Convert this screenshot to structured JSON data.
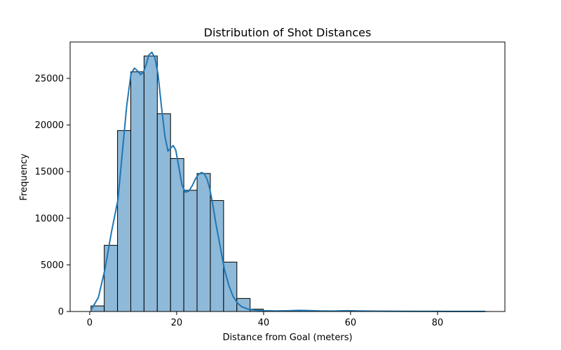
{
  "chart_data": {
    "type": "bar",
    "title": "Distribution of Shot Distances",
    "xlabel": "Distance from Goal (meters)",
    "ylabel": "Frequency",
    "xlim": [
      -4.5,
      95.5
    ],
    "ylim": [
      0,
      28900
    ],
    "xticks": [
      0,
      20,
      40,
      60,
      80
    ],
    "yticks": [
      0,
      5000,
      10000,
      15000,
      20000,
      25000
    ],
    "grid": false,
    "bin_width": 3.05,
    "bins": [
      {
        "x0": 0.3,
        "x1": 3.35,
        "value": 600
      },
      {
        "x0": 3.35,
        "x1": 6.4,
        "value": 7100
      },
      {
        "x0": 6.4,
        "x1": 9.45,
        "value": 19400
      },
      {
        "x0": 9.45,
        "x1": 12.5,
        "value": 25700
      },
      {
        "x0": 12.5,
        "x1": 15.55,
        "value": 27400
      },
      {
        "x0": 15.55,
        "x1": 18.6,
        "value": 21200
      },
      {
        "x0": 18.6,
        "x1": 21.65,
        "value": 16400
      },
      {
        "x0": 21.65,
        "x1": 24.7,
        "value": 13000
      },
      {
        "x0": 24.7,
        "x1": 27.75,
        "value": 14800
      },
      {
        "x0": 27.75,
        "x1": 30.8,
        "value": 11900
      },
      {
        "x0": 30.8,
        "x1": 33.85,
        "value": 5300
      },
      {
        "x0": 33.85,
        "x1": 36.9,
        "value": 1400
      },
      {
        "x0": 36.9,
        "x1": 39.95,
        "value": 250
      },
      {
        "x0": 39.95,
        "x1": 43.0,
        "value": 60
      },
      {
        "x0": 43.0,
        "x1": 46.05,
        "value": 30
      },
      {
        "x0": 46.05,
        "x1": 49.1,
        "value": 60
      },
      {
        "x0": 49.1,
        "x1": 52.15,
        "value": 30
      },
      {
        "x0": 52.15,
        "x1": 55.2,
        "value": 15
      },
      {
        "x0": 55.2,
        "x1": 58.25,
        "value": 20
      },
      {
        "x0": 58.25,
        "x1": 61.3,
        "value": 40
      },
      {
        "x0": 61.3,
        "x1": 64.35,
        "value": 15
      },
      {
        "x0": 64.35,
        "x1": 67.4,
        "value": 10
      },
      {
        "x0": 67.4,
        "x1": 70.45,
        "value": 10
      },
      {
        "x0": 70.45,
        "x1": 73.5,
        "value": 5
      },
      {
        "x0": 73.5,
        "x1": 76.55,
        "value": 5
      },
      {
        "x0": 76.55,
        "x1": 79.6,
        "value": 5
      },
      {
        "x0": 79.6,
        "x1": 82.65,
        "value": 5
      },
      {
        "x0": 82.65,
        "x1": 85.7,
        "value": 5
      },
      {
        "x0": 85.7,
        "x1": 88.75,
        "value": 5
      },
      {
        "x0": 88.75,
        "x1": 91.8,
        "value": 5
      }
    ],
    "kde": {
      "x": [
        0.3,
        2,
        3.5,
        5,
        6.5,
        7.5,
        8.5,
        9.5,
        10.3,
        11,
        11.7,
        12.3,
        13,
        13.6,
        14.3,
        15,
        15.7,
        16.5,
        17.3,
        18,
        18.6,
        19.2,
        19.8,
        20.5,
        21.2,
        22,
        22.8,
        23.6,
        24.3,
        25,
        25.7,
        26.3,
        27,
        27.6,
        28.3,
        29,
        30,
        31,
        32,
        33,
        34,
        35,
        36.5,
        38,
        40,
        43,
        46,
        48,
        50,
        53,
        56,
        59,
        62,
        66,
        70,
        75,
        80,
        85,
        88,
        91
      ],
      "y": [
        150,
        1500,
        4500,
        8500,
        12000,
        17000,
        22000,
        25500,
        26100,
        25800,
        25400,
        25600,
        26500,
        27500,
        27800,
        27200,
        25500,
        22000,
        18800,
        17200,
        17500,
        17800,
        17300,
        15500,
        13600,
        12800,
        12900,
        13500,
        14200,
        14700,
        14900,
        14800,
        14200,
        13200,
        11500,
        9500,
        7000,
        4500,
        2800,
        1600,
        900,
        500,
        250,
        150,
        80,
        60,
        80,
        120,
        100,
        60,
        50,
        80,
        60,
        40,
        30,
        20,
        15,
        10,
        5,
        5
      ]
    },
    "colors": {
      "bar_fill": "#8fb9d8",
      "bar_edge": "#000000",
      "kde_line": "#1f77b4"
    }
  }
}
